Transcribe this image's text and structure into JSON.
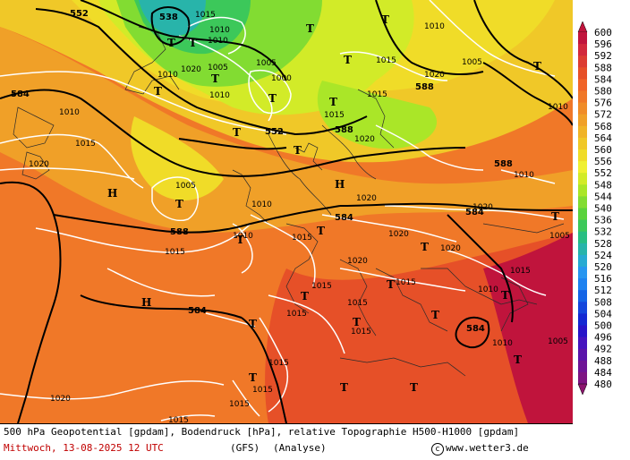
{
  "caption": {
    "line1": "500 hPa Geopotential [gpdam], Bodendruck [hPa], relative Topographie H500-H1000 [gpdam]",
    "date": "Mittwoch, 13-08-2025  12 UTC",
    "model": "(GFS)",
    "run_type": "(Analyse)",
    "site": "www.wetter3.de",
    "copyright_symbol": "c"
  },
  "legend": {
    "values": [
      "600",
      "596",
      "592",
      "588",
      "584",
      "580",
      "576",
      "572",
      "568",
      "564",
      "560",
      "556",
      "552",
      "548",
      "544",
      "540",
      "536",
      "532",
      "528",
      "524",
      "520",
      "516",
      "512",
      "508",
      "504",
      "500",
      "496",
      "492",
      "488",
      "484",
      "480"
    ],
    "colors": [
      "#c0143c",
      "#d2283c",
      "#dc3c32",
      "#e65028",
      "#f06428",
      "#f07828",
      "#f08c28",
      "#f0a028",
      "#f0b428",
      "#f0c828",
      "#f0dc28",
      "#f0f032",
      "#d2eb28",
      "#aae628",
      "#82dc32",
      "#5ad23c",
      "#3cc85a",
      "#28be82",
      "#28b4aa",
      "#28aad2",
      "#2896f0",
      "#1e82f0",
      "#1464e6",
      "#1446dc",
      "#1428d2",
      "#2814c8",
      "#4614be",
      "#5a14aa",
      "#6e1496",
      "#7d1482",
      "#8c146e"
    ]
  },
  "geopotential_labels": [
    "552",
    "538",
    "584",
    "552",
    "588",
    "588",
    "588",
    "584",
    "588",
    "584",
    "584",
    "584"
  ],
  "pressure_labels": [
    "1015",
    "1010",
    "1010",
    "1005",
    "1020",
    "1010",
    "1005",
    "1000",
    "1015",
    "1020",
    "1010",
    "1015",
    "1010",
    "1005",
    "1020",
    "1015",
    "1010",
    "1020",
    "1010",
    "1015",
    "1020",
    "1015",
    "1010",
    "1005",
    "1015",
    "1020",
    "1010",
    "1010",
    "1015",
    "1015",
    "1015",
    "1020",
    "1005",
    "1020",
    "1020",
    "1015",
    "1015",
    "1015",
    "1010",
    "1010",
    "1005",
    "1015",
    "1015",
    "1020",
    "1015",
    "1015"
  ],
  "markers": {
    "low": "T",
    "high": "H"
  }
}
